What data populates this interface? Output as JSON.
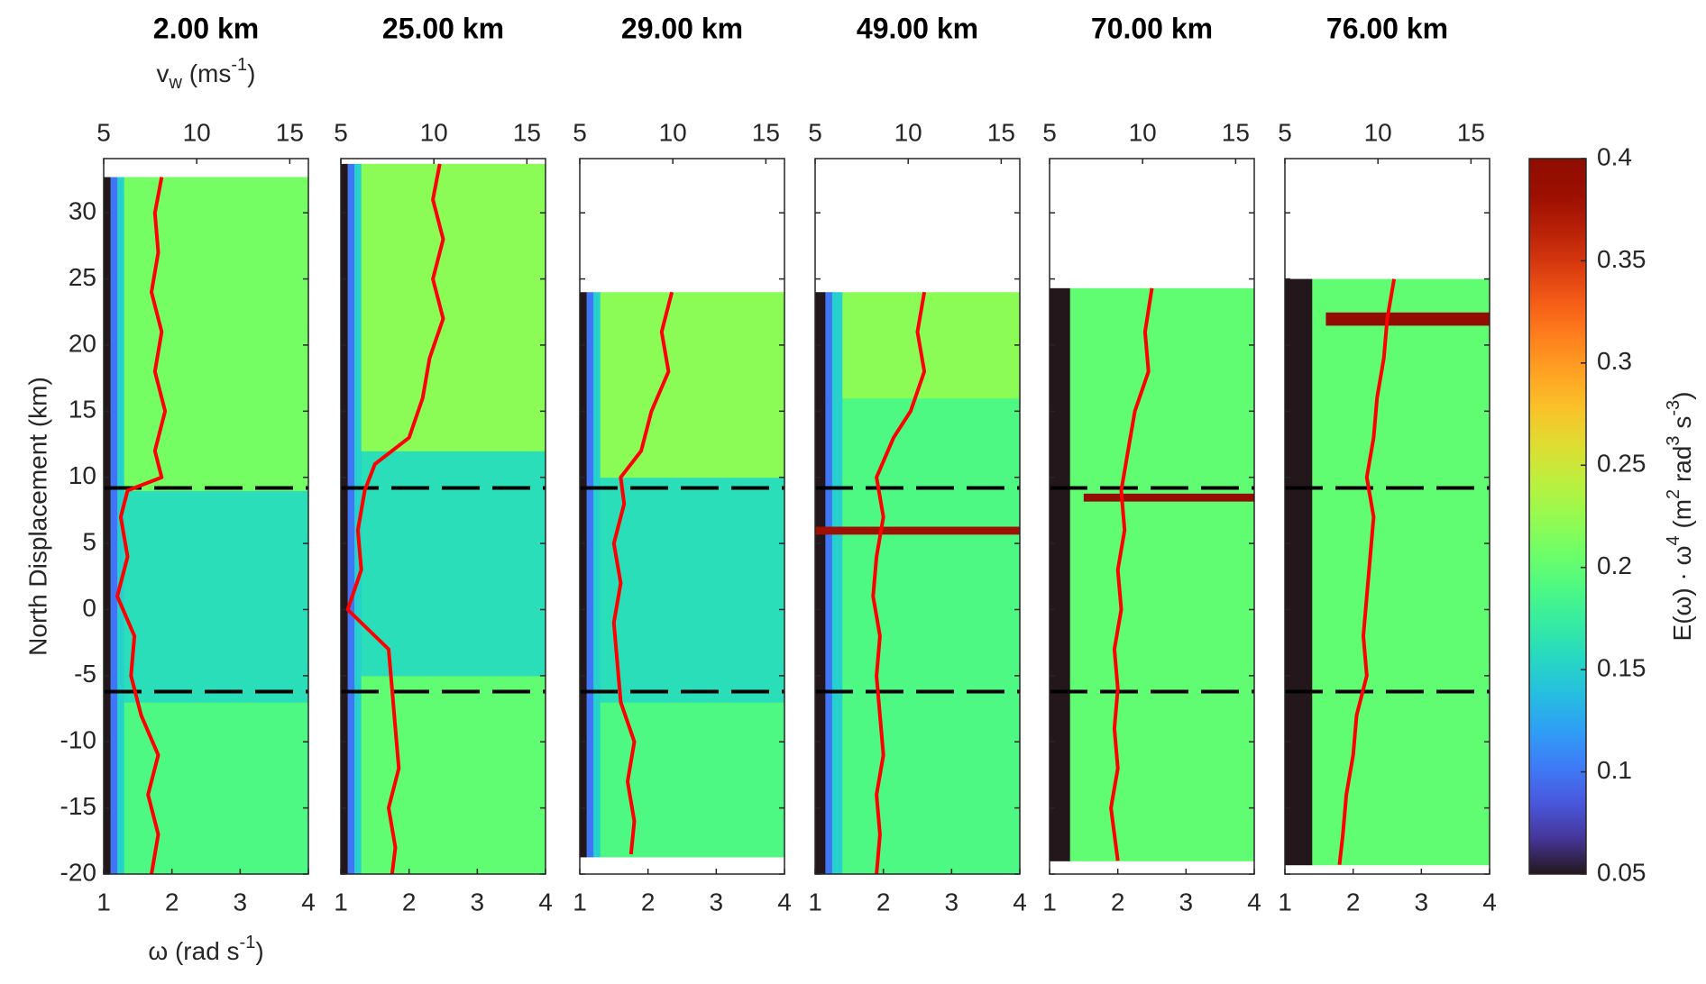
{
  "chart_data": [
    {
      "type": "heatmap",
      "title": "2.00 km",
      "xlim": [
        1,
        4
      ],
      "xticks": [
        1,
        2,
        3,
        4
      ],
      "x2lim": [
        5,
        16
      ],
      "x2ticks": [
        5,
        10,
        15
      ],
      "ylim": [
        -20,
        34.1
      ],
      "yticks": [
        -20,
        -15,
        -10,
        -5,
        0,
        5,
        10,
        15,
        20,
        25,
        30
      ],
      "ytick_labels": true,
      "x_bins": [
        1,
        1.1,
        1.2,
        1.3,
        4
      ],
      "y_bins": [
        -20,
        -7,
        9,
        32.7
      ],
      "z": [
        [
          0.05,
          0.1,
          0.15,
          0.19
        ],
        [
          0.05,
          0.1,
          0.15,
          0.16
        ],
        [
          0.05,
          0.1,
          0.15,
          0.21
        ]
      ],
      "line": {
        "color": "#ff0000",
        "y": [
          32.7,
          30,
          27,
          24,
          21,
          18,
          15,
          12,
          10,
          9,
          7,
          4,
          1,
          -2,
          -5,
          -8,
          -11,
          -14,
          -17,
          -20
        ],
        "x": [
          1.85,
          1.75,
          1.8,
          1.7,
          1.85,
          1.75,
          1.9,
          1.75,
          1.85,
          1.35,
          1.25,
          1.35,
          1.2,
          1.45,
          1.4,
          1.55,
          1.8,
          1.65,
          1.8,
          1.7
        ]
      },
      "hlines": [
        9.2,
        -6.2
      ]
    },
    {
      "type": "heatmap",
      "title": "25.00 km",
      "xlim": [
        1,
        4
      ],
      "xticks": [
        1,
        2,
        3,
        4
      ],
      "x2lim": [
        5,
        16
      ],
      "x2ticks": [
        5,
        10,
        15
      ],
      "ylim": [
        -20,
        34.1
      ],
      "yticks": [
        -20,
        -15,
        -10,
        -5,
        0,
        5,
        10,
        15,
        20,
        25,
        30
      ],
      "ytick_labels": false,
      "x_bins": [
        1,
        1.1,
        1.2,
        1.3,
        4
      ],
      "y_bins": [
        -20,
        -5,
        12,
        33.7
      ],
      "z": [
        [
          0.05,
          0.1,
          0.15,
          0.2
        ],
        [
          0.05,
          0.1,
          0.15,
          0.16
        ],
        [
          0.05,
          0.1,
          0.15,
          0.22
        ]
      ],
      "line": {
        "color": "#ff0000",
        "y": [
          33.7,
          31,
          28,
          25,
          22,
          19,
          16,
          13,
          11,
          9,
          6,
          3,
          0,
          -3,
          -6,
          -9,
          -12,
          -15,
          -18,
          -20
        ],
        "x": [
          2.45,
          2.35,
          2.5,
          2.35,
          2.5,
          2.3,
          2.2,
          2.0,
          1.5,
          1.35,
          1.25,
          1.3,
          1.1,
          1.7,
          1.75,
          1.8,
          1.85,
          1.7,
          1.8,
          1.75
        ]
      },
      "hlines": [
        9.2,
        -6.2
      ]
    },
    {
      "type": "heatmap",
      "title": "29.00 km",
      "xlim": [
        1,
        4
      ],
      "xticks": [
        1,
        2,
        3,
        4
      ],
      "x2lim": [
        5,
        16
      ],
      "x2ticks": [
        5,
        10,
        15
      ],
      "ylim": [
        -20,
        34.1
      ],
      "yticks": [
        -20,
        -15,
        -10,
        -5,
        0,
        5,
        10,
        15,
        20,
        25,
        30
      ],
      "ytick_labels": false,
      "x_bins": [
        1,
        1.1,
        1.2,
        1.3,
        4
      ],
      "y_bins": [
        -18.7,
        -7,
        10,
        24
      ],
      "z": [
        [
          0.05,
          0.1,
          0.15,
          0.19
        ],
        [
          0.05,
          0.1,
          0.15,
          0.16
        ],
        [
          0.05,
          0.1,
          0.15,
          0.22
        ]
      ],
      "line": {
        "color": "#ff0000",
        "y": [
          24,
          21,
          18,
          15,
          12,
          10,
          8,
          5,
          2,
          -1,
          -4,
          -7,
          -10,
          -13,
          -16,
          -18.5
        ],
        "x": [
          2.35,
          2.2,
          2.3,
          2.05,
          1.9,
          1.6,
          1.65,
          1.5,
          1.6,
          1.5,
          1.55,
          1.6,
          1.8,
          1.7,
          1.8,
          1.75
        ]
      },
      "hlines": [
        9.2,
        -6.2
      ]
    },
    {
      "type": "heatmap",
      "title": "49.00 km",
      "xlim": [
        1,
        4
      ],
      "xticks": [
        1,
        2,
        3,
        4
      ],
      "x2lim": [
        5,
        16
      ],
      "x2ticks": [
        5,
        10,
        15
      ],
      "ylim": [
        -20,
        34.1
      ],
      "yticks": [
        -20,
        -15,
        -10,
        -5,
        0,
        5,
        10,
        15,
        20,
        25,
        30
      ],
      "ytick_labels": false,
      "x_bins": [
        1,
        1.15,
        1.25,
        1.4,
        4
      ],
      "y_bins": [
        -20,
        5.7,
        6.3,
        16,
        24
      ],
      "z": [
        [
          0.05,
          0.1,
          0.15,
          0.19
        ],
        [
          0.38,
          0.38,
          0.38,
          0.38
        ],
        [
          0.05,
          0.1,
          0.15,
          0.19
        ],
        [
          0.05,
          0.1,
          0.15,
          0.22
        ]
      ],
      "line": {
        "color": "#ff0000",
        "y": [
          24,
          21,
          18,
          15,
          13,
          10,
          7,
          4,
          1,
          -2,
          -5,
          -8,
          -11,
          -14,
          -17,
          -20
        ],
        "x": [
          2.6,
          2.5,
          2.6,
          2.4,
          2.15,
          1.9,
          2.0,
          1.9,
          1.85,
          1.95,
          1.9,
          1.95,
          2.0,
          1.9,
          1.95,
          1.9
        ]
      },
      "hlines": [
        9.2,
        -6.2
      ]
    },
    {
      "type": "heatmap",
      "title": "70.00 km",
      "xlim": [
        1,
        4
      ],
      "xticks": [
        1,
        2,
        3,
        4
      ],
      "x2lim": [
        5,
        16
      ],
      "x2ticks": [
        5,
        10,
        15
      ],
      "ylim": [
        -20,
        34.1
      ],
      "yticks": [
        -20,
        -15,
        -10,
        -5,
        0,
        5,
        10,
        15,
        20,
        25,
        30
      ],
      "ytick_labels": false,
      "x_bins": [
        1,
        1.3,
        1.5,
        4
      ],
      "y_bins": [
        -19,
        8.2,
        8.8,
        24.3
      ],
      "z": [
        [
          0.05,
          0.2,
          0.2
        ],
        [
          0.05,
          0.2,
          0.4
        ],
        [
          0.05,
          0.2,
          0.2
        ]
      ],
      "line": {
        "color": "#ff0000",
        "y": [
          24.3,
          21,
          18,
          15,
          12,
          9,
          6,
          3,
          0,
          -3,
          -6,
          -9,
          -12,
          -15,
          -19
        ],
        "x": [
          2.5,
          2.4,
          2.45,
          2.25,
          2.15,
          2.05,
          2.1,
          2.0,
          2.05,
          1.95,
          2.0,
          1.95,
          2.0,
          1.9,
          2.0
        ]
      },
      "hlines": [
        9.2,
        -6.2
      ]
    },
    {
      "type": "heatmap",
      "title": "76.00 km",
      "xlim": [
        1,
        4
      ],
      "xticks": [
        1,
        2,
        3,
        4
      ],
      "x2lim": [
        5,
        16
      ],
      "x2ticks": [
        5,
        10,
        15
      ],
      "ylim": [
        -20,
        34.1
      ],
      "yticks": [
        -20,
        -15,
        -10,
        -5,
        0,
        5,
        10,
        15,
        20,
        25,
        30
      ],
      "ytick_labels": false,
      "x_bins": [
        1,
        1.4,
        1.6,
        4
      ],
      "y_bins": [
        -19.3,
        21.5,
        22.5,
        25
      ],
      "z": [
        [
          0.05,
          0.2,
          0.2
        ],
        [
          0.05,
          0.2,
          0.4
        ],
        [
          0.05,
          0.2,
          0.2
        ]
      ],
      "line": {
        "color": "#ff0000",
        "y": [
          25,
          22,
          19,
          16,
          13,
          10,
          7,
          4,
          1,
          -2,
          -5,
          -8,
          -11,
          -14,
          -17,
          -19.3
        ],
        "x": [
          2.6,
          2.5,
          2.45,
          2.35,
          2.3,
          2.2,
          2.3,
          2.25,
          2.2,
          2.15,
          2.2,
          2.05,
          2.0,
          1.9,
          1.85,
          1.8
        ]
      },
      "hlines": [
        9.2,
        -6.2
      ]
    }
  ],
  "figure": {
    "ylabel": "North Displacement (km)",
    "xlabel": [
      "ω (rad s",
      "-1",
      ")"
    ],
    "x2label": [
      "v",
      "w",
      " (ms",
      "-1",
      ")"
    ],
    "colorbar": {
      "clim": [
        0.05,
        0.4
      ],
      "ticks": [
        0.05,
        0.1,
        0.15,
        0.2,
        0.25,
        0.3,
        0.35,
        0.4
      ],
      "label": [
        "E(ω) · ω",
        "4",
        " (m",
        "2",
        " rad",
        "3",
        " s",
        "-3",
        ")"
      ]
    }
  }
}
